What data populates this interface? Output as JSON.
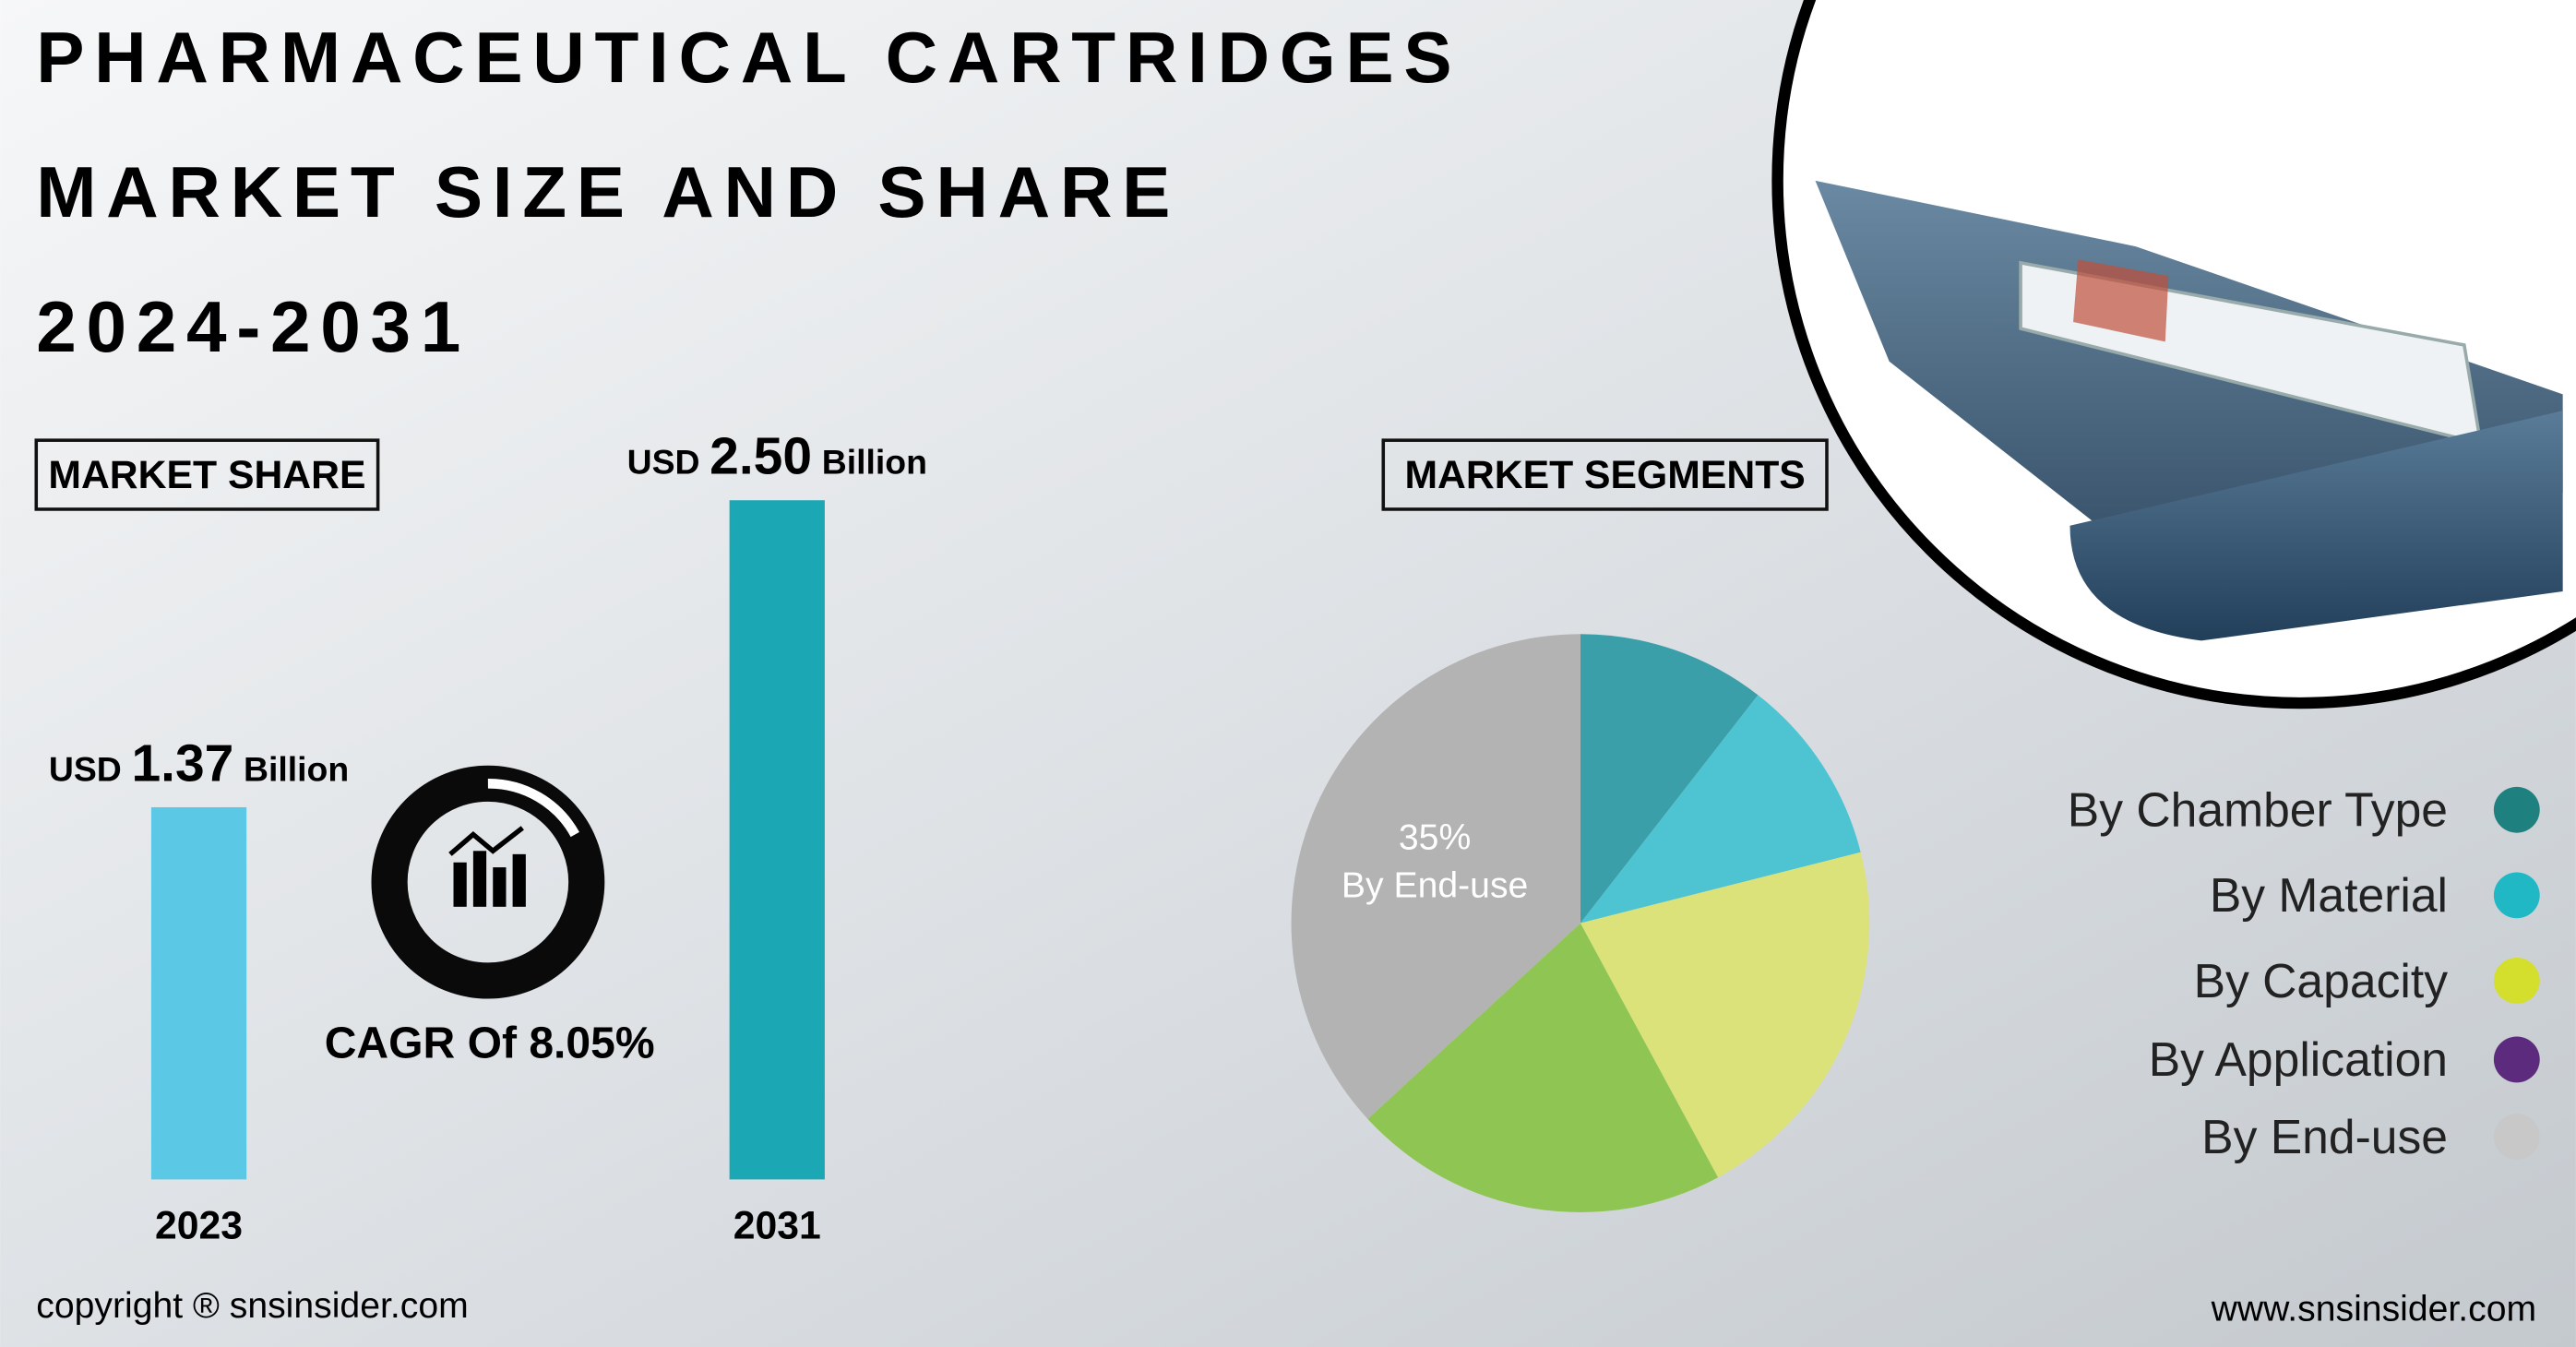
{
  "header": {
    "title_lines": [
      "PHARMACEUTICAL CARTRIDGES",
      "MARKET SIZE AND SHARE",
      "2024-2031"
    ]
  },
  "chart_data": [
    {
      "type": "bar",
      "title": "MARKET SHARE",
      "categories": [
        "2023",
        "2031"
      ],
      "values": [
        1.37,
        2.5
      ],
      "value_labels": [
        "1.37",
        "2.50"
      ],
      "value_prefix": "USD",
      "value_suffix": "Billion",
      "colors": [
        "#5bc8e6",
        "#1ba8b4"
      ],
      "ylim": [
        0,
        2.6
      ]
    },
    {
      "type": "pie",
      "title": "MARKET SEGMENTS",
      "categories": [
        "By Chamber Type",
        "By Material",
        "By Capacity",
        "By Application",
        "By End-use"
      ],
      "values": [
        10,
        10,
        20,
        20,
        35
      ],
      "value_labels": [
        null,
        null,
        null,
        null,
        "35%"
      ],
      "colors": [
        "#3a9fa8",
        "#4ec4d2",
        "#dbe27a",
        "#8fc653",
        "#b3b3b3"
      ],
      "legend_colors": [
        "#1f8080",
        "#21b8c6",
        "#d4de2c",
        "#5d2b7e",
        "#c8c8c8"
      ]
    }
  ],
  "cagr": "CAGR Of 8.05%",
  "footer": {
    "copyright": "copyright ® snsinsider.com",
    "website": "www.snsinsider.com"
  }
}
